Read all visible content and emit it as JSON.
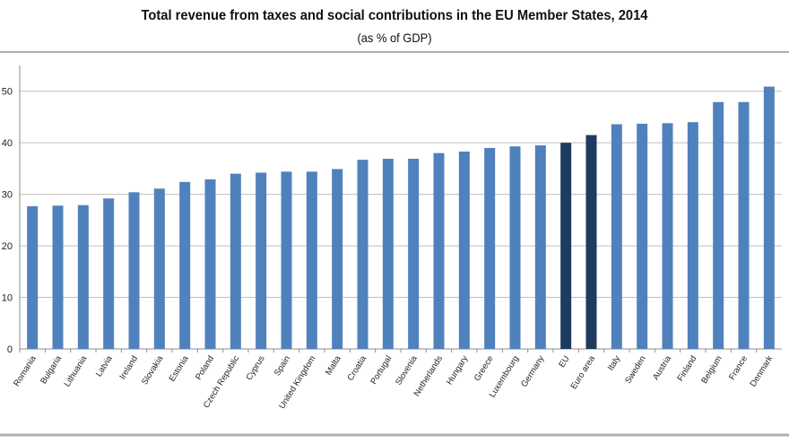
{
  "chart_data": {
    "type": "bar",
    "title": "Total revenue from taxes and social contributions in the EU Member States, 2014",
    "subtitle": "(as % of GDP)",
    "xlabel": "",
    "ylabel": "",
    "ylim": [
      0,
      55
    ],
    "yticks": [
      0,
      10,
      20,
      30,
      40,
      50
    ],
    "grid": true,
    "legend": "none",
    "categories": [
      "Romania",
      "Bulgaria",
      "Lithuania",
      "Latvia",
      "Ireland",
      "Slovakia",
      "Estonia",
      "Poland",
      "Czech Republic",
      "Cyprus",
      "Spain",
      "United Kingdom",
      "Malta",
      "Croatia",
      "Portugal",
      "Slovenia",
      "Netherlands",
      "Hungary",
      "Greece",
      "Luxembourg",
      "Germany",
      "EU",
      "Euro area",
      "Italy",
      "Sweden",
      "Austria",
      "Finland",
      "Belgium",
      "France",
      "Denmark"
    ],
    "values": [
      27.7,
      27.8,
      27.9,
      29.2,
      30.4,
      31.1,
      32.4,
      32.9,
      34.0,
      34.2,
      34.4,
      34.4,
      34.9,
      36.7,
      36.9,
      36.9,
      38.0,
      38.3,
      39.0,
      39.3,
      39.5,
      40.0,
      41.5,
      43.6,
      43.7,
      43.8,
      44.0,
      47.9,
      47.9,
      50.9
    ],
    "highlighted": [
      "EU",
      "Euro area"
    ],
    "colors": {
      "bar": "#4f81bd",
      "highlight": "#1f3a5f",
      "grid": "#bfbfbf",
      "axis": "#8c8c8c"
    }
  }
}
